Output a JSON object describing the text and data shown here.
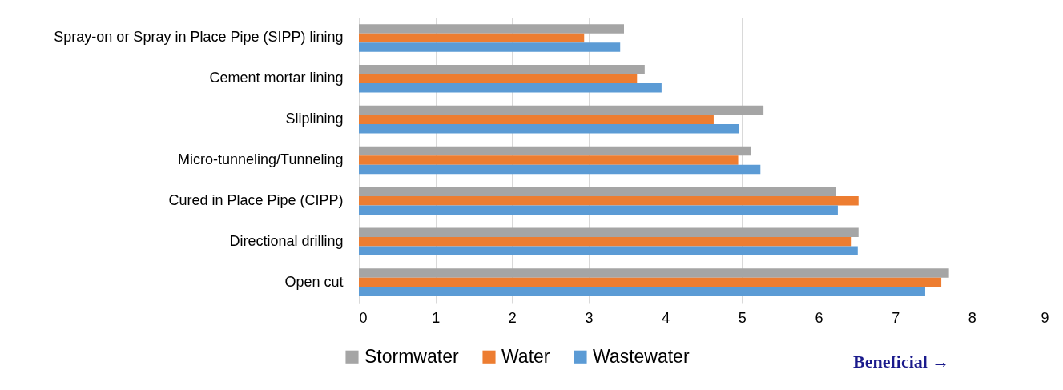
{
  "chart_data": {
    "type": "bar",
    "orientation": "horizontal",
    "categories": [
      "Spray-on or Spray in Place Pipe (SIPP) lining",
      "Cement mortar lining",
      "Sliplining",
      "Micro-tunneling/Tunneling",
      "Cured in Place Pipe (CIPP)",
      "Directional drilling",
      "Open cut"
    ],
    "series": [
      {
        "name": "Stormwater",
        "color": "#a5a5a5",
        "values": [
          3.46,
          3.73,
          5.28,
          5.12,
          6.22,
          6.52,
          7.7
        ]
      },
      {
        "name": "Water",
        "color": "#ed7d31",
        "values": [
          2.94,
          3.63,
          4.63,
          4.95,
          6.52,
          6.42,
          7.6
        ]
      },
      {
        "name": "Wastewater",
        "color": "#5b9bd5",
        "values": [
          3.41,
          3.95,
          4.96,
          5.24,
          6.25,
          6.51,
          7.39
        ]
      }
    ],
    "xlim": [
      0,
      9
    ],
    "xticks": [
      0,
      1,
      2,
      3,
      4,
      5,
      6,
      7,
      8,
      9
    ],
    "grid": "x",
    "legend": "bottom left",
    "annotations": [
      "Beneficial →"
    ]
  }
}
